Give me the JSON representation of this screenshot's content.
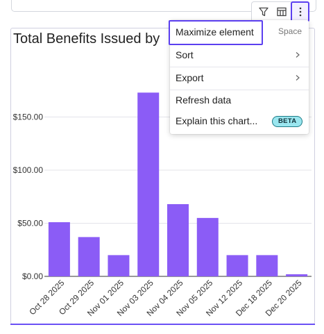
{
  "toolbar": {
    "buttons": [
      {
        "name": "filter",
        "icon": "filter-icon"
      },
      {
        "name": "columns",
        "icon": "columns-icon"
      },
      {
        "name": "more",
        "icon": "more-vertical-icon"
      }
    ]
  },
  "menu": {
    "maximize_label": "Maximize element",
    "maximize_shortcut": "Space",
    "sort_label": "Sort",
    "export_label": "Export",
    "refresh_label": "Refresh data",
    "explain_label": "Explain this chart...",
    "beta_badge": "BETA"
  },
  "colors": {
    "bar": "#8b5cf6",
    "accent": "#5b3ff0",
    "beta_bg": "#9ae6ef"
  },
  "chart_data": {
    "type": "bar",
    "title": "Total Benefits Issued by",
    "categories": [
      "Oct 28 2025",
      "Oct 29 2025",
      "Nov 01 2025",
      "Nov 03 2025",
      "Nov 04 2025",
      "Nov 05 2025",
      "Nov 12 2025",
      "Dec 18 2025",
      "Dec 20 2025"
    ],
    "values": [
      51,
      37,
      20,
      173,
      68,
      55,
      20,
      20,
      2
    ],
    "yticks": [
      0,
      50,
      100,
      150
    ],
    "ytick_labels": [
      "$0.00",
      "$50.00",
      "$100.00",
      "$150.00"
    ],
    "ylim": [
      0,
      185
    ],
    "grid": true
  }
}
